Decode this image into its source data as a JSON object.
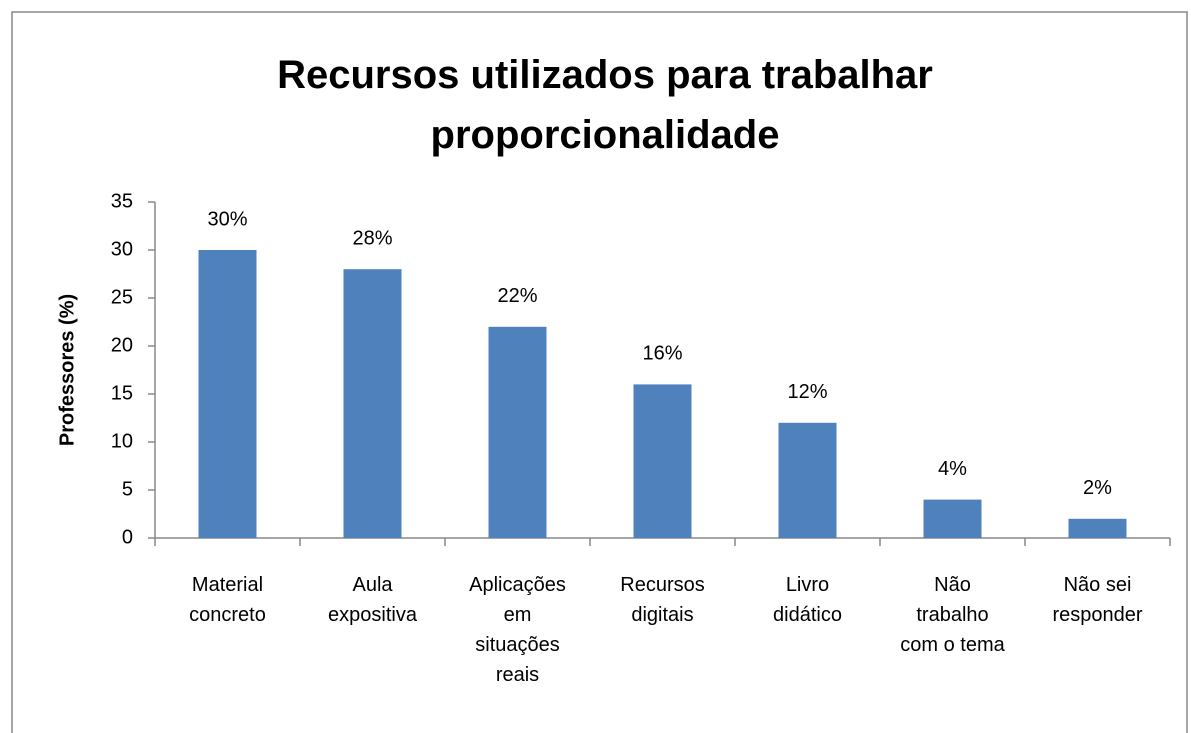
{
  "chart_data": {
    "type": "bar",
    "title": "Recursos utilizados para trabalhar proporcionalidade",
    "ylabel": "Professores (%)",
    "categories": [
      "Material concreto",
      "Aula expositiva",
      "Aplicações em situações reais",
      "Recursos digitais",
      "Livro didático",
      "Não trabalho com o tema",
      "Não sei responder"
    ],
    "values": [
      30,
      28,
      22,
      16,
      12,
      4,
      2
    ],
    "value_labels": [
      "30%",
      "28%",
      "22%",
      "16%",
      "12%",
      "4%",
      "2%"
    ],
    "color": "#4f81bd",
    "ylim": [
      0,
      35
    ],
    "yticks": [
      0,
      5,
      10,
      15,
      20,
      25,
      30,
      35
    ],
    "grid": false
  }
}
